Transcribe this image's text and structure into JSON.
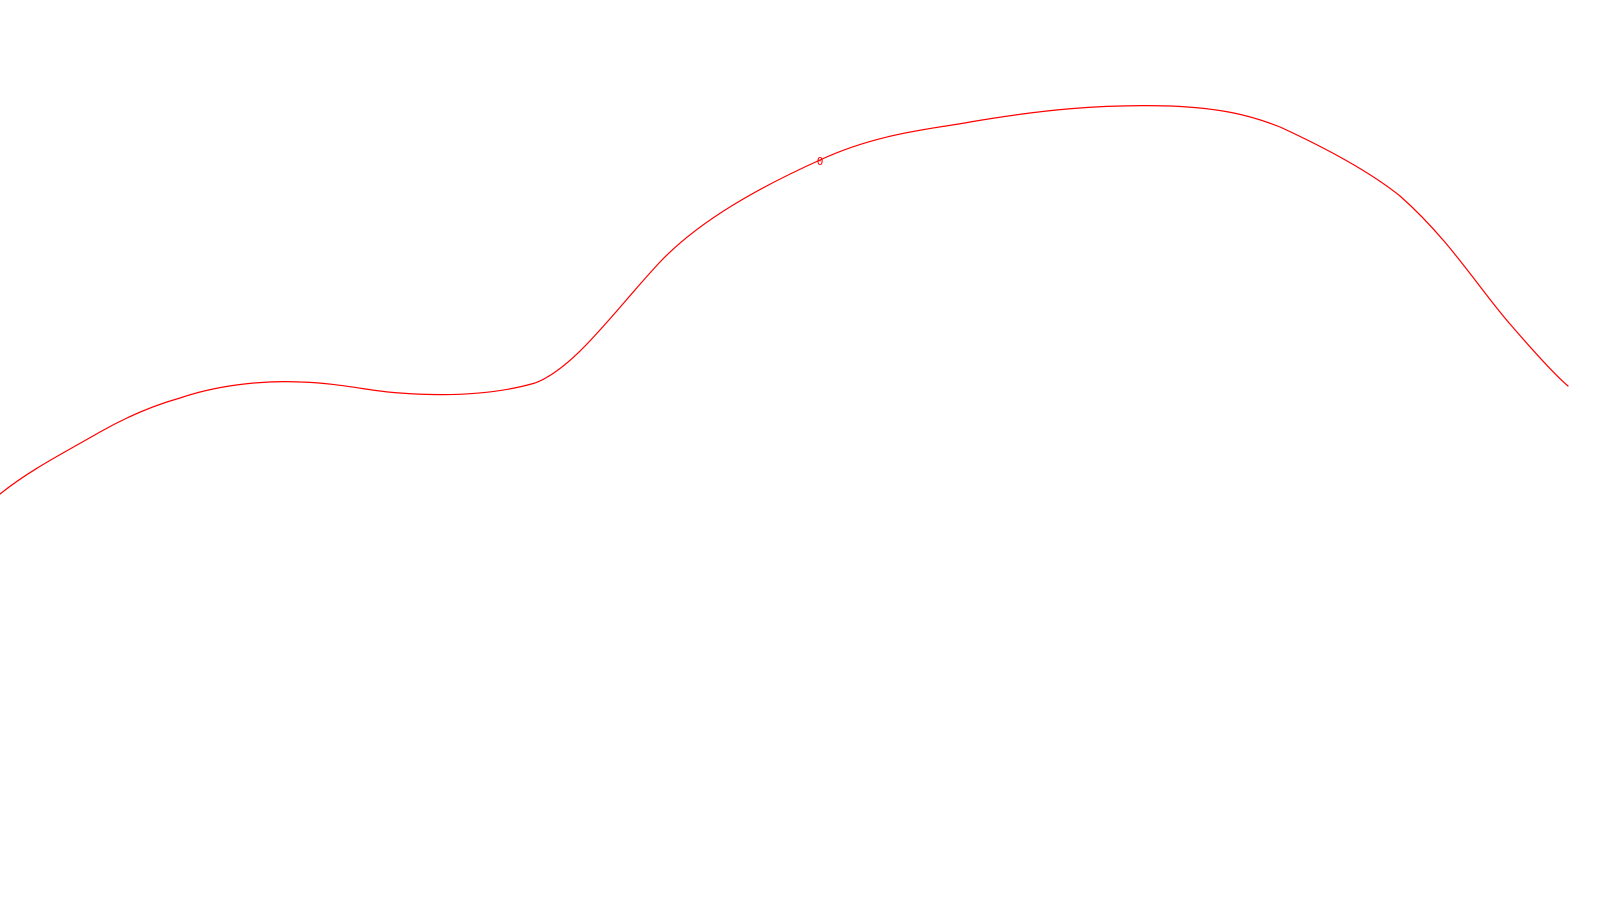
{
  "diagram": {
    "type": "contour",
    "background": "#ffffff",
    "line_color": "#ff0000",
    "contours": [
      {
        "level_label": "0"
      }
    ]
  }
}
